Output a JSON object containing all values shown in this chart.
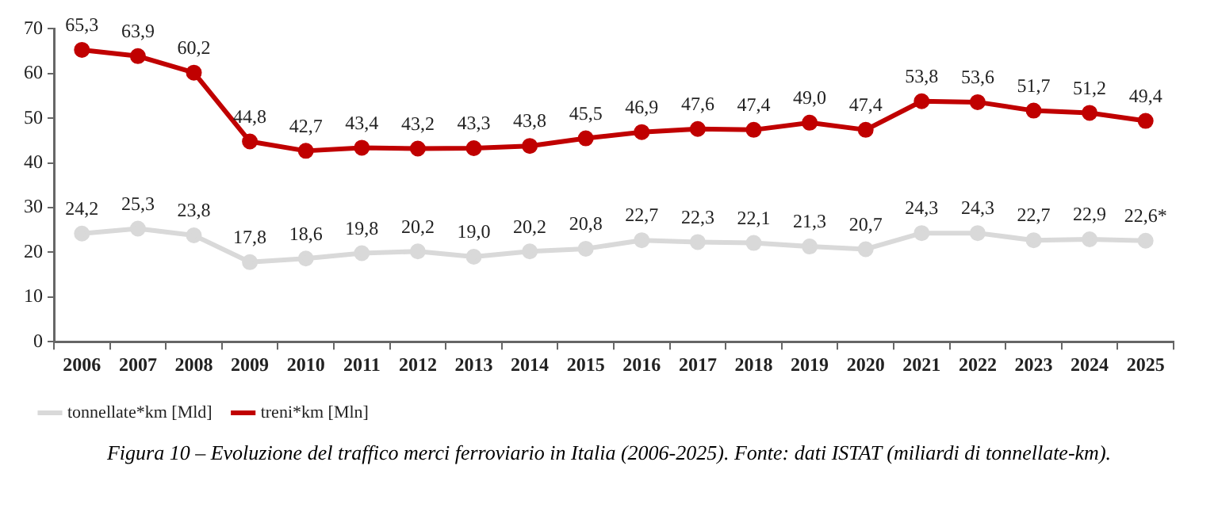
{
  "chart_data": {
    "type": "line",
    "categories": [
      "2006",
      "2007",
      "2008",
      "2009",
      "2010",
      "2011",
      "2012",
      "2013",
      "2014",
      "2015",
      "2016",
      "2017",
      "2018",
      "2019",
      "2020",
      "2021",
      "2022",
      "2023",
      "2024",
      "2025"
    ],
    "series": [
      {
        "name": "tonnellate*km [Mld]",
        "color": "#d9d9d9",
        "values": [
          24.2,
          25.3,
          23.8,
          17.8,
          18.6,
          19.8,
          20.2,
          19.0,
          20.2,
          20.8,
          22.7,
          22.3,
          22.1,
          21.3,
          20.7,
          24.3,
          24.3,
          22.7,
          22.9,
          22.6
        ],
        "value_labels": [
          "24,2",
          "25,3",
          "23,8",
          "17,8",
          "18,6",
          "19,8",
          "20,2",
          "19,0",
          "20,2",
          "20,8",
          "22,7",
          "22,3",
          "22,1",
          "21,3",
          "20,7",
          "24,3",
          "24,3",
          "22,7",
          "22,9",
          "22,6*"
        ]
      },
      {
        "name": "treni*km [Mln]",
        "color": "#c00000",
        "values": [
          65.3,
          63.9,
          60.2,
          44.8,
          42.7,
          43.4,
          43.2,
          43.3,
          43.8,
          45.5,
          46.9,
          47.6,
          47.4,
          49.0,
          47.4,
          53.8,
          53.6,
          51.7,
          51.2,
          49.4
        ],
        "value_labels": [
          "65,3",
          "63,9",
          "60,2",
          "44,8",
          "42,7",
          "43,4",
          "43,2",
          "43,3",
          "43,8",
          "45,5",
          "46,9",
          "47,6",
          "47,4",
          "49,0",
          "47,4",
          "53,8",
          "53,6",
          "51,7",
          "51,2",
          "49,4"
        ]
      }
    ],
    "ylim": [
      0,
      70
    ],
    "yticks": [
      0,
      10,
      20,
      30,
      40,
      50,
      60,
      70
    ],
    "grid": false,
    "legend": "bottom left",
    "marker": "circle",
    "line_style": "solid",
    "annotations": [
      "Figura 10 – Evoluzione del traffico merci ferroviario in Italia (2006-2025). Fonte: dati ISTAT (miliardi di tonnellate-km)."
    ]
  }
}
